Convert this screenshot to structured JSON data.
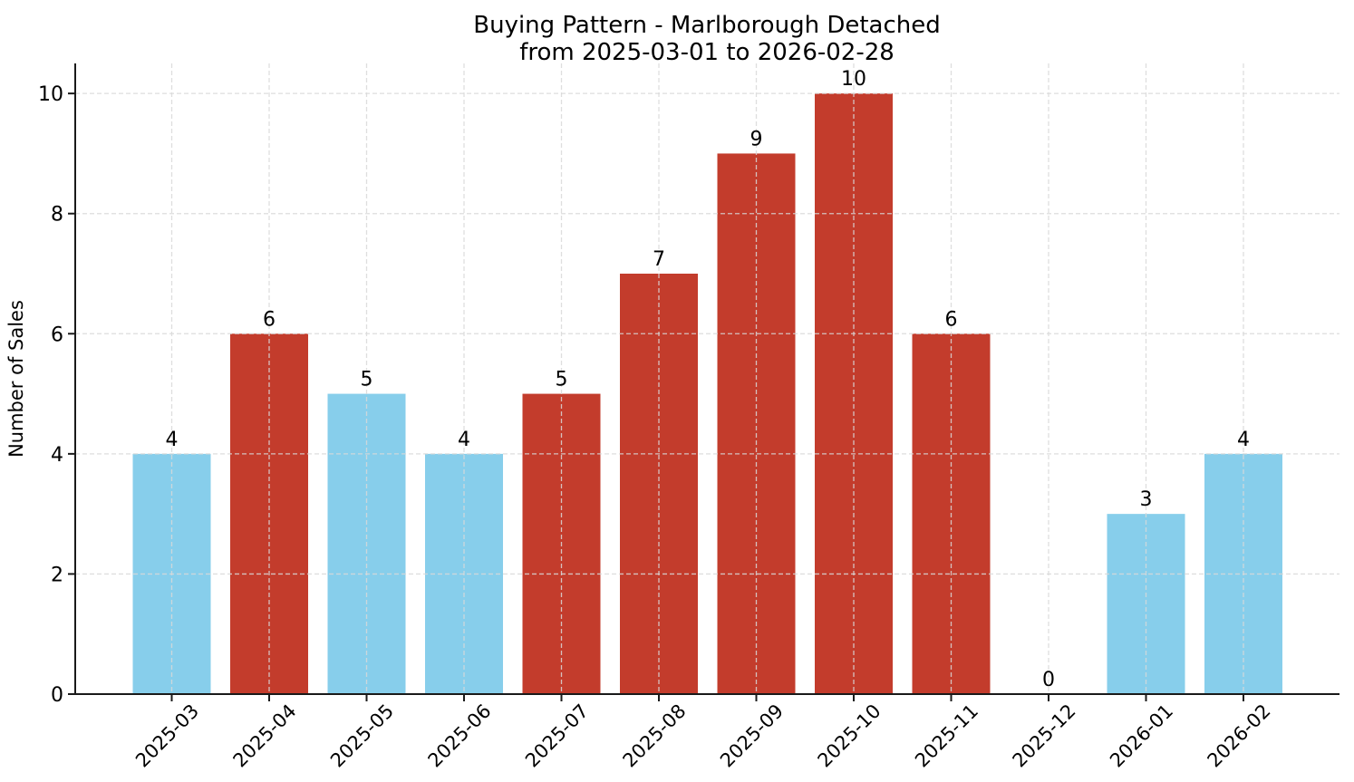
{
  "title": {
    "line1": "Buying Pattern - Marlborough Detached",
    "line2": "from 2025-03-01 to 2026-02-28"
  },
  "chart_data": {
    "type": "bar",
    "title": "Buying Pattern - Marlborough Detached\nfrom 2025-03-01 to 2026-02-28",
    "xlabel": "",
    "ylabel": "Number of Sales",
    "categories": [
      "2025-03",
      "2025-04",
      "2025-05",
      "2025-06",
      "2025-07",
      "2025-08",
      "2025-09",
      "2025-10",
      "2025-11",
      "2025-12",
      "2026-01",
      "2026-02"
    ],
    "values": [
      4,
      6,
      5,
      4,
      5,
      7,
      9,
      10,
      6,
      0,
      3,
      4
    ],
    "bar_colors": [
      "#87CEEB",
      "#C33C2C",
      "#87CEEB",
      "#87CEEB",
      "#C33C2C",
      "#C33C2C",
      "#C33C2C",
      "#C33C2C",
      "#C33C2C",
      "#87CEEB",
      "#87CEEB",
      "#87CEEB"
    ],
    "value_labels": [
      "4",
      "6",
      "5",
      "4",
      "5",
      "7",
      "9",
      "10",
      "6",
      "0",
      "3",
      "4"
    ],
    "yticks": [
      0,
      2,
      4,
      6,
      8,
      10
    ],
    "ylim": [
      0,
      10.5
    ],
    "grid": "both-dashed",
    "legend": "none",
    "colors": {
      "bar_blue": "#87CEEB",
      "bar_red": "#C33C2C",
      "grid": "#d9d9d9",
      "axis": "#1a1a1a",
      "text": "#000000"
    }
  }
}
